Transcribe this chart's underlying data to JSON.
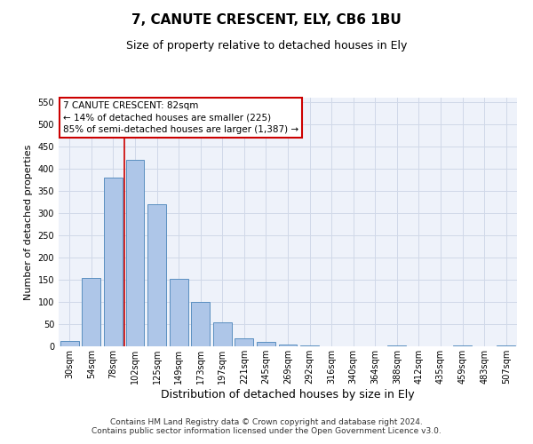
{
  "title": "7, CANUTE CRESCENT, ELY, CB6 1BU",
  "subtitle": "Size of property relative to detached houses in Ely",
  "xlabel": "Distribution of detached houses by size in Ely",
  "ylabel": "Number of detached properties",
  "categories": [
    "30sqm",
    "54sqm",
    "78sqm",
    "102sqm",
    "125sqm",
    "149sqm",
    "173sqm",
    "197sqm",
    "221sqm",
    "245sqm",
    "269sqm",
    "292sqm",
    "316sqm",
    "340sqm",
    "364sqm",
    "388sqm",
    "412sqm",
    "435sqm",
    "459sqm",
    "483sqm",
    "507sqm"
  ],
  "values": [
    12,
    155,
    380,
    420,
    320,
    152,
    100,
    55,
    18,
    10,
    5,
    3,
    1,
    0,
    0,
    3,
    0,
    0,
    3,
    0,
    3
  ],
  "bar_color": "#aec6e8",
  "bar_edge_color": "#5a8fc0",
  "vline_color": "#cc0000",
  "annotation_text": "7 CANUTE CRESCENT: 82sqm\n← 14% of detached houses are smaller (225)\n85% of semi-detached houses are larger (1,387) →",
  "annotation_box_color": "#ffffff",
  "annotation_box_edge_color": "#cc0000",
  "ylim": [
    0,
    560
  ],
  "yticks": [
    0,
    50,
    100,
    150,
    200,
    250,
    300,
    350,
    400,
    450,
    500,
    550
  ],
  "grid_color": "#d0d8e8",
  "background_color": "#eef2fa",
  "footer_text": "Contains HM Land Registry data © Crown copyright and database right 2024.\nContains public sector information licensed under the Open Government Licence v3.0.",
  "title_fontsize": 11,
  "subtitle_fontsize": 9,
  "ylabel_fontsize": 8,
  "xlabel_fontsize": 9,
  "tick_fontsize": 7,
  "annotation_fontsize": 7.5,
  "footer_fontsize": 6.5
}
